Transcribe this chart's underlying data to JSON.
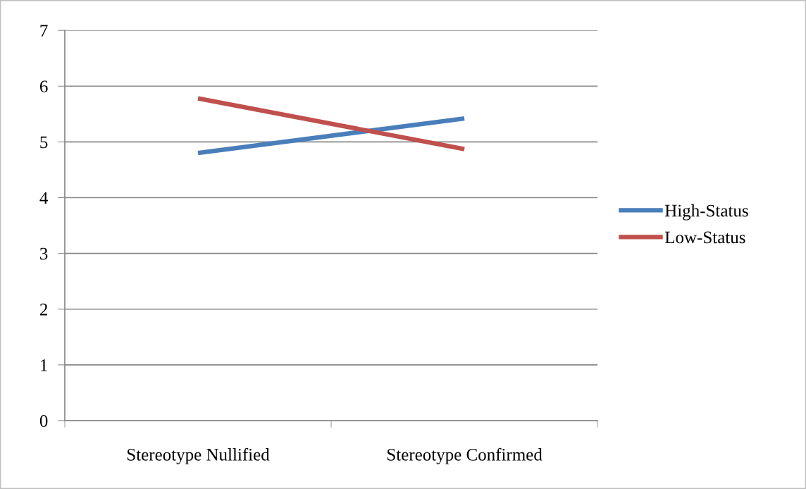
{
  "chart_data": {
    "type": "line",
    "categories": [
      "Stereotype Nullified",
      "Stereotype Confirmed"
    ],
    "series": [
      {
        "name": "High-Status",
        "color": "#4a7ebb",
        "values": [
          4.8,
          5.42
        ]
      },
      {
        "name": "Low-Status",
        "color": "#c0504d",
        "values": [
          5.78,
          4.87
        ]
      }
    ],
    "ylim": [
      0,
      7
    ],
    "yticks": [
      0,
      1,
      2,
      3,
      4,
      5,
      6,
      7
    ],
    "grid": "y",
    "legend": "right",
    "marker": "none",
    "line_style": "solid"
  }
}
